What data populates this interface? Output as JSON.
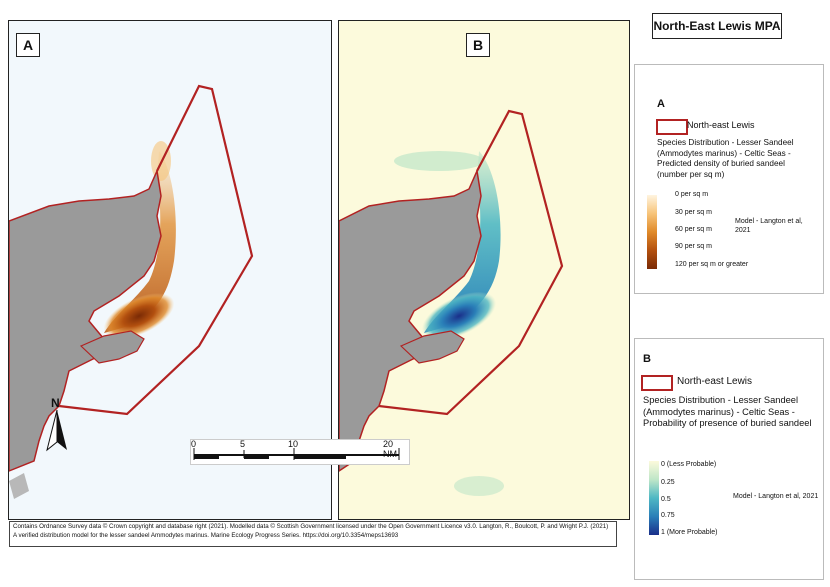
{
  "title": "North-East Lewis MPA",
  "panels": [
    {
      "label": "A"
    },
    {
      "label": "B"
    }
  ],
  "legend_a": {
    "heading": "A",
    "boundary_label": "North-east Lewis",
    "description": "Species Distribution - Lesser Sandeel (Ammodytes marinus) - Celtic Seas - Predicted density of buried sandeel (number per sq m)",
    "classes": [
      "0 per sq m",
      "30 per sq m",
      "60 per sq m",
      "90 per sq m",
      "120 per sq m or greater"
    ],
    "model": "Model - Langton et al, 2021",
    "colors": [
      "#fff4e0",
      "#f7c47a",
      "#e08a2a",
      "#b3500f",
      "#7a2a05"
    ]
  },
  "legend_b": {
    "heading": "B",
    "boundary_label": "North-east Lewis",
    "description": "Species Distribution - Lesser Sandeel (Ammodytes marinus) - Celtic Seas - Probability of presence of buried sandeel",
    "classes": [
      "0 (Less Probable)",
      "0.25",
      "0.5",
      "0.75",
      "1 (More Probable)"
    ],
    "model": "Model - Langton et al, 2021",
    "colors": [
      "#fcfadc",
      "#bfe6c8",
      "#4fb8c4",
      "#2a7fb8",
      "#1a2f8a"
    ]
  },
  "scale": {
    "ticks": [
      "0",
      "5",
      "10",
      "20 NM"
    ]
  },
  "north_label": "N",
  "credit": "Contains Ordnance Survey data © Crown copyright and database right (2021). Modelled data © Scottish Government licensed under the Open Government Licence v3.0. Langton, R., Boulcott, P. and Wright P.J. (2021) A verified distribution model for the lesser sandeel Ammodytes marinus. Marine Ecology Progress Series. https://doi.org/10.3354/meps13693",
  "map_colors": {
    "land": "#9a9a9a",
    "boundary": "#b22222",
    "sea_a": "#f2f8fc",
    "sea_b": "#fcfadc"
  }
}
